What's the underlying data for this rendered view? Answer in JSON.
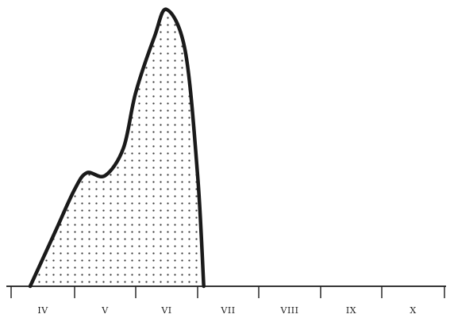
{
  "chart_data": {
    "type": "area",
    "categories": [
      "IV",
      "V",
      "VI",
      "VII",
      "VIII",
      "IX",
      "X"
    ],
    "x": [
      4.3,
      4.7,
      5.0,
      5.2,
      5.5,
      5.8,
      6.0,
      6.3,
      6.5,
      6.8,
      7.0,
      7.1
    ],
    "values": [
      0,
      40,
      70,
      82,
      80,
      100,
      140,
      180,
      200,
      170,
      80,
      0
    ],
    "fill_pattern": "dotted",
    "grid": false,
    "legend": "none",
    "colors": {
      "line": "#1a1a1a",
      "dots": "#3a3a3a",
      "background": "#ffffff"
    }
  }
}
